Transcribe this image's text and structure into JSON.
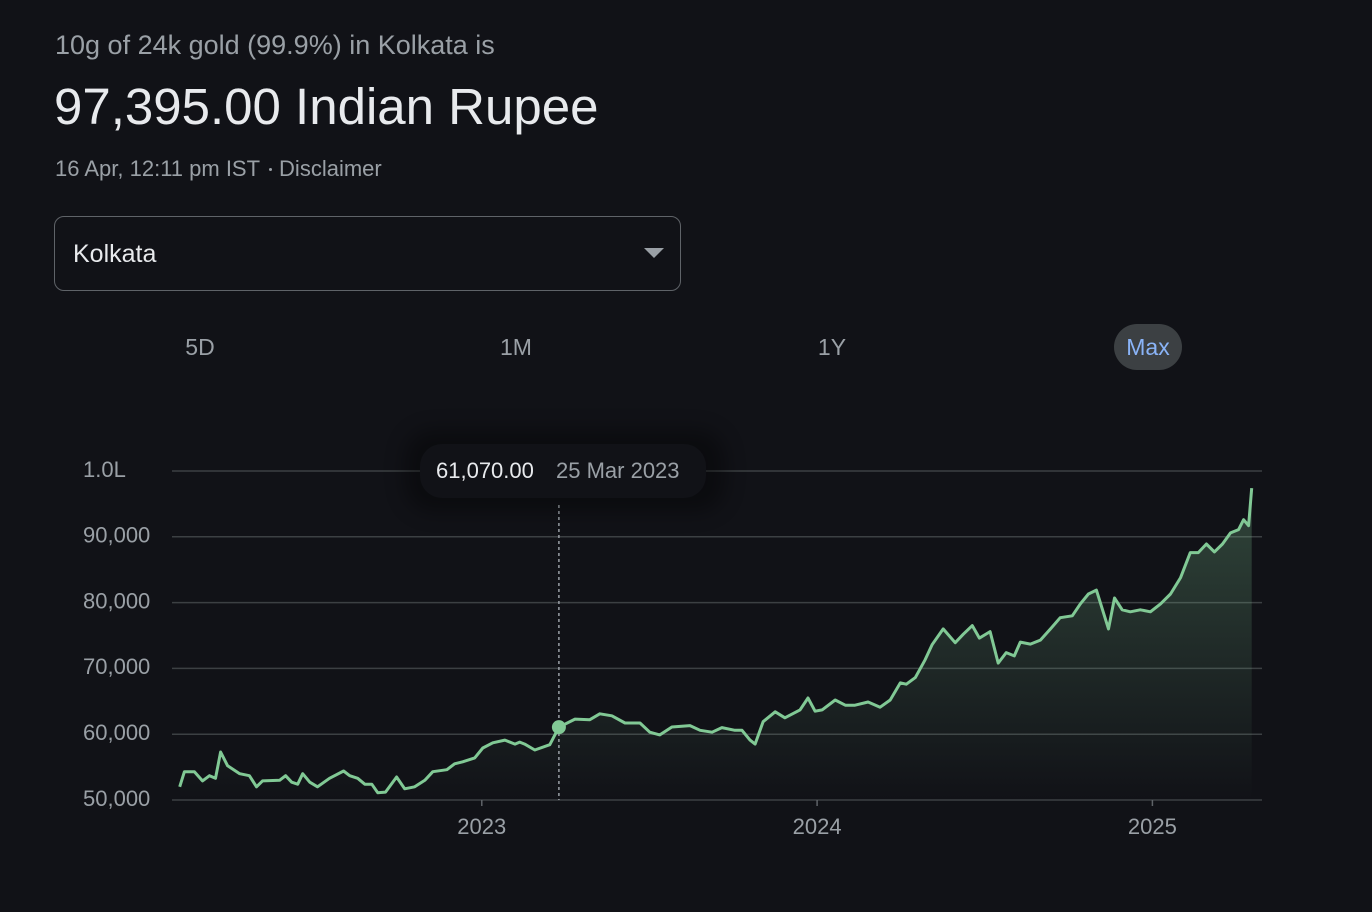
{
  "header": {
    "subtitle": "10g of 24k gold (99.9%) in Kolkata is",
    "price": "97,395.00 Indian Rupee",
    "timestamp": "16 Apr, 12:11 pm IST",
    "disclaimer": "Disclaimer"
  },
  "location_select": "Kolkata",
  "ranges": [
    "5D",
    "1M",
    "1Y",
    "Max"
  ],
  "chart_data": {
    "type": "line",
    "color": "#81c995",
    "x": [
      2022.099,
      2022.113,
      2022.143,
      2022.167,
      2022.188,
      2022.206,
      2022.221,
      2022.242,
      2022.278,
      2022.307,
      2022.328,
      2022.346,
      2022.397,
      2022.415,
      2022.433,
      2022.451,
      2022.466,
      2022.487,
      2022.51,
      2022.546,
      2022.588,
      2022.606,
      2022.63,
      2022.651,
      2022.672,
      2022.69,
      2022.713,
      2022.746,
      2022.77,
      2022.8,
      2022.83,
      2022.854,
      2022.896,
      2022.919,
      2022.943,
      2022.979,
      2023.003,
      2023.033,
      2023.069,
      2023.099,
      2023.113,
      2023.128,
      2023.158,
      2023.203,
      2023.23,
      2023.278,
      2023.322,
      2023.352,
      2023.388,
      2023.427,
      2023.472,
      2023.501,
      2023.531,
      2023.567,
      2023.621,
      2023.651,
      2023.687,
      2023.716,
      2023.755,
      2023.776,
      2023.8,
      2023.815,
      2023.839,
      2023.875,
      2023.904,
      2023.949,
      2023.973,
      2023.994,
      2024.015,
      2024.054,
      2024.084,
      2024.113,
      2024.152,
      2024.188,
      2024.218,
      2024.248,
      2024.266,
      2024.293,
      2024.322,
      2024.343,
      2024.376,
      2024.412,
      2024.436,
      2024.463,
      2024.484,
      2024.516,
      2024.54,
      2024.564,
      2024.588,
      2024.606,
      2024.636,
      2024.666,
      2024.696,
      2024.725,
      2024.761,
      2024.785,
      2024.809,
      2024.833,
      2024.869,
      2024.887,
      2024.91,
      2024.934,
      2024.964,
      2024.994,
      2025.024,
      2025.054,
      2025.084,
      2025.113,
      2025.137,
      2025.161,
      2025.185,
      2025.209,
      2025.233,
      2025.257,
      2025.272,
      2025.287,
      2025.296
    ],
    "values": [
      52000,
      54300,
      54300,
      52900,
      53700,
      53300,
      57300,
      55200,
      54000,
      53700,
      52000,
      52900,
      53000,
      53700,
      52700,
      52400,
      54000,
      52700,
      52000,
      53300,
      54400,
      53700,
      53300,
      52400,
      52400,
      51100,
      51200,
      53500,
      51700,
      52000,
      53000,
      54300,
      54600,
      55500,
      55800,
      56400,
      57900,
      58700,
      59100,
      58500,
      58800,
      58500,
      57600,
      58400,
      61070,
      62300,
      62200,
      63100,
      62800,
      61700,
      61700,
      60300,
      59900,
      61100,
      61300,
      60600,
      60300,
      61000,
      60600,
      60600,
      59100,
      58500,
      61900,
      63400,
      62500,
      63700,
      65500,
      63500,
      63700,
      65200,
      64400,
      64400,
      64900,
      64100,
      65200,
      67800,
      67600,
      68600,
      71300,
      73600,
      76000,
      73900,
      75200,
      76500,
      74600,
      75600,
      70800,
      72400,
      71900,
      74000,
      73700,
      74300,
      76000,
      77700,
      78000,
      79800,
      81300,
      81900,
      76000,
      80700,
      78900,
      78600,
      78900,
      78600,
      79800,
      81300,
      83800,
      87600,
      87600,
      88900,
      87700,
      88900,
      90600,
      91100,
      92600,
      91700,
      97395
    ],
    "xlim": [
      2022.1,
      2025.3
    ],
    "xticks": [
      2023,
      2024,
      2025
    ],
    "ylim": [
      50000,
      100000
    ],
    "yticks": [
      {
        "value": 50000,
        "label": "50,000"
      },
      {
        "value": 60000,
        "label": "60,000"
      },
      {
        "value": 70000,
        "label": "70,000"
      },
      {
        "value": 80000,
        "label": "80,000"
      },
      {
        "value": 90000,
        "label": "90,000"
      },
      {
        "value": 100000,
        "label": "1.0L"
      }
    ],
    "grid": true,
    "highlight": {
      "x": 2023.23,
      "value": 61070,
      "label": "61,070.00",
      "date": "25 Mar 2023"
    }
  }
}
